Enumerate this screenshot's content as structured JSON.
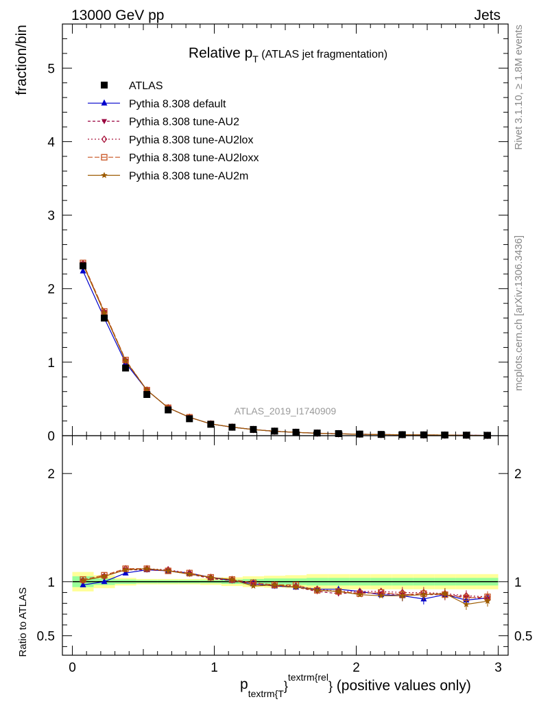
{
  "header": {
    "left": "13000 GeV pp",
    "right": "Jets"
  },
  "title": {
    "main": "Relative p",
    "sub": "T",
    "rest": " (ATLAS jet fragmentation)"
  },
  "side_labels": {
    "rivet": "Rivet 3.1.10, ≥ 1.8M events",
    "mcplots": "mcplots.cern.ch [arXiv:1306.3436]"
  },
  "watermark": "ATLAS_2019_I1740909",
  "axes": {
    "ylabel_main": "fraction/bin",
    "ylabel_ratio": "Ratio to ATLAS",
    "xlabel": {
      "p": "p",
      "sub": "textrm{T",
      "close1": "}",
      "sup": "textrm{rel",
      "close2": "}",
      "rest": " (positive values only)"
    },
    "main_yticks": [
      "0",
      "1",
      "2",
      "3",
      "4",
      "5"
    ],
    "ratio_yticks": [
      "0.5",
      "1",
      "2"
    ],
    "xticks": [
      "0",
      "1",
      "2",
      "3"
    ]
  },
  "chart_data": {
    "type": "line",
    "x": [
      0.075,
      0.225,
      0.375,
      0.525,
      0.675,
      0.825,
      0.975,
      1.125,
      1.275,
      1.425,
      1.575,
      1.725,
      1.875,
      2.025,
      2.175,
      2.325,
      2.475,
      2.625,
      2.775,
      2.925
    ],
    "xlim": [
      -0.07,
      3.07
    ],
    "ylim": [
      0,
      5.6
    ],
    "ratio_ylim": [
      0.32,
      2.35
    ],
    "legend_position": "top-left",
    "reference": {
      "name": "ATLAS",
      "values": [
        2.31,
        1.6,
        0.92,
        0.56,
        0.35,
        0.23,
        0.155,
        0.115,
        0.085,
        0.062,
        0.047,
        0.036,
        0.028,
        0.022,
        0.017,
        0.014,
        0.011,
        0.009,
        0.007,
        0.005
      ]
    },
    "ratio_bands": {
      "green": [
        0.05,
        0.03,
        0.02,
        0.015,
        0.015,
        0.015,
        0.015,
        0.02,
        0.025,
        0.03,
        0.03,
        0.035,
        0.035,
        0.035,
        0.035,
        0.035,
        0.035,
        0.035,
        0.035,
        0.035
      ],
      "yellow": [
        0.09,
        0.06,
        0.035,
        0.025,
        0.025,
        0.025,
        0.03,
        0.04,
        0.05,
        0.055,
        0.06,
        0.07,
        0.07,
        0.07,
        0.07,
        0.07,
        0.07,
        0.07,
        0.07,
        0.07
      ]
    },
    "series": [
      {
        "name": "Pythia 8.308 default",
        "color": "#0000cc",
        "dash": "",
        "marker": "triangle-up",
        "values": [
          2.24,
          1.6,
          0.99,
          0.62,
          0.38,
          0.25,
          0.161,
          0.116,
          0.084,
          0.06,
          0.045,
          0.034,
          0.026,
          0.02,
          0.015,
          0.012,
          0.009,
          0.008,
          0.006,
          0.004
        ],
        "ratio": [
          0.97,
          1.0,
          1.08,
          1.11,
          1.1,
          1.08,
          1.04,
          1.01,
          0.98,
          0.96,
          0.95,
          0.93,
          0.93,
          0.91,
          0.88,
          0.87,
          0.84,
          0.88,
          0.83,
          0.85
        ]
      },
      {
        "name": "Pythia 8.308 tune-AU2",
        "color": "#99003d",
        "dash": "4,3",
        "marker": "triangle-down",
        "values": [
          2.34,
          1.68,
          1.02,
          0.62,
          0.38,
          0.25,
          0.16,
          0.116,
          0.083,
          0.06,
          0.045,
          0.033,
          0.025,
          0.02,
          0.015,
          0.012,
          0.01,
          0.008,
          0.006,
          0.004
        ],
        "ratio": [
          1.01,
          1.05,
          1.11,
          1.11,
          1.1,
          1.07,
          1.03,
          1.01,
          0.98,
          0.96,
          0.95,
          0.91,
          0.89,
          0.9,
          0.89,
          0.88,
          0.88,
          0.88,
          0.86,
          0.84
        ]
      },
      {
        "name": "Pythia 8.308 tune-AU2lox",
        "color": "#a8143c",
        "dash": "2,3",
        "marker": "diamond",
        "values": [
          2.34,
          1.68,
          1.02,
          0.62,
          0.38,
          0.25,
          0.161,
          0.117,
          0.084,
          0.061,
          0.046,
          0.034,
          0.026,
          0.02,
          0.016,
          0.013,
          0.01,
          0.008,
          0.006,
          0.004
        ],
        "ratio": [
          1.01,
          1.05,
          1.12,
          1.12,
          1.11,
          1.08,
          1.04,
          1.02,
          0.99,
          0.97,
          0.96,
          0.93,
          0.91,
          0.91,
          0.91,
          0.9,
          0.9,
          0.89,
          0.87,
          0.86
        ]
      },
      {
        "name": "Pythia 8.308 tune-AU2loxx",
        "color": "#c8501e",
        "dash": "7,3",
        "marker": "square-open",
        "values": [
          2.35,
          1.69,
          1.03,
          0.62,
          0.38,
          0.25,
          0.161,
          0.117,
          0.084,
          0.061,
          0.046,
          0.034,
          0.026,
          0.02,
          0.015,
          0.012,
          0.01,
          0.008,
          0.006,
          0.004
        ],
        "ratio": [
          1.02,
          1.06,
          1.12,
          1.12,
          1.1,
          1.08,
          1.04,
          1.02,
          0.99,
          0.97,
          0.97,
          0.92,
          0.91,
          0.89,
          0.9,
          0.88,
          0.89,
          0.88,
          0.85,
          0.86
        ]
      },
      {
        "name": "Pythia 8.308 tune-AU2m",
        "color": "#9c5a00",
        "dash": "",
        "marker": "star",
        "values": [
          2.33,
          1.67,
          1.02,
          0.62,
          0.38,
          0.25,
          0.161,
          0.117,
          0.083,
          0.06,
          0.045,
          0.033,
          0.025,
          0.019,
          0.015,
          0.012,
          0.01,
          0.008,
          0.005,
          0.004
        ],
        "ratio": [
          1.01,
          1.05,
          1.11,
          1.12,
          1.1,
          1.07,
          1.04,
          1.02,
          0.96,
          0.97,
          0.95,
          0.92,
          0.91,
          0.88,
          0.87,
          0.87,
          0.88,
          0.89,
          0.79,
          0.82
        ]
      }
    ]
  }
}
